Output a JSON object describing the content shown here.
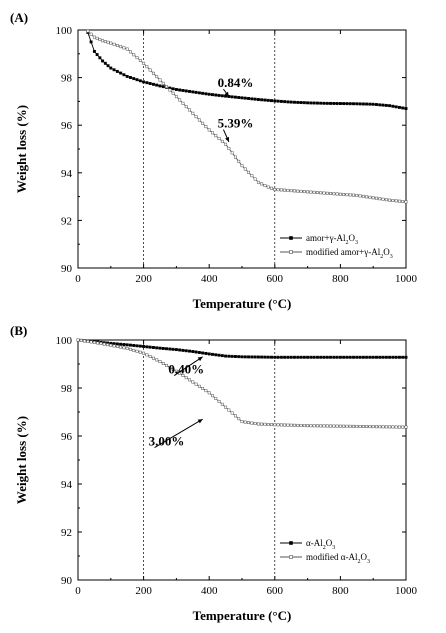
{
  "chart_data": [
    {
      "type": "line",
      "panel_label": "(A)",
      "xlabel": "Temperature (°C)",
      "ylabel": "Weight loss (%)",
      "xlim": [
        0,
        1000
      ],
      "ylim": [
        90,
        100
      ],
      "xticks": [
        0,
        200,
        400,
        600,
        800,
        1000
      ],
      "yticks": [
        90,
        92,
        94,
        96,
        98,
        100
      ],
      "dashed_vlines": [
        200,
        600
      ],
      "legend_position": "bottom-right",
      "series": [
        {
          "name": "amor+γ-Al2O3",
          "legend_base": "amor+γ-Al",
          "marker": "filled-square",
          "color": "#000000",
          "x": [
            30,
            50,
            75,
            100,
            150,
            200,
            250,
            300,
            350,
            400,
            450,
            500,
            550,
            600,
            650,
            700,
            750,
            800,
            850,
            900,
            950,
            1000
          ],
          "y": [
            99.9,
            99.1,
            98.7,
            98.4,
            98.05,
            97.82,
            97.65,
            97.5,
            97.4,
            97.3,
            97.22,
            97.15,
            97.08,
            97.02,
            96.97,
            96.94,
            96.92,
            96.91,
            96.9,
            96.88,
            96.82,
            96.7
          ]
        },
        {
          "name": "modified amor+γ-Al2O3",
          "legend_base": "modified amor+γ-Al",
          "marker": "open-square",
          "color": "#555555",
          "x": [
            30,
            50,
            75,
            100,
            150,
            200,
            250,
            300,
            350,
            400,
            450,
            500,
            550,
            580,
            600,
            650,
            700,
            750,
            800,
            850,
            900,
            950,
            1000
          ],
          "y": [
            99.95,
            99.7,
            99.55,
            99.45,
            99.2,
            98.6,
            97.9,
            97.2,
            96.5,
            95.8,
            95.2,
            94.3,
            93.6,
            93.4,
            93.3,
            93.25,
            93.2,
            93.15,
            93.1,
            93.05,
            92.95,
            92.85,
            92.78
          ]
        }
      ],
      "annotations": [
        {
          "text": "0.84%",
          "x": 480,
          "y": 97.6,
          "arrow_to": [
            460,
            97.2
          ]
        },
        {
          "text": "5.39%",
          "x": 480,
          "y": 95.9,
          "arrow_to": [
            460,
            95.3
          ]
        }
      ]
    },
    {
      "type": "line",
      "panel_label": "(B)",
      "xlabel": "Temperature (°C)",
      "ylabel": "Weight loss (%)",
      "xlim": [
        0,
        1000
      ],
      "ylim": [
        90,
        100
      ],
      "xticks": [
        0,
        200,
        400,
        600,
        800,
        1000
      ],
      "yticks": [
        90,
        92,
        94,
        96,
        98,
        100
      ],
      "dashed_vlines": [
        200,
        600
      ],
      "legend_position": "bottom-right",
      "series": [
        {
          "name": "α-Al2O3",
          "legend_base": "α-Al",
          "marker": "filled-square",
          "color": "#000000",
          "x": [
            0,
            50,
            100,
            150,
            200,
            250,
            300,
            350,
            400,
            450,
            500,
            550,
            600,
            650,
            700,
            750,
            800,
            850,
            900,
            950,
            1000
          ],
          "y": [
            100.0,
            99.93,
            99.86,
            99.8,
            99.73,
            99.66,
            99.6,
            99.52,
            99.42,
            99.33,
            99.3,
            99.29,
            99.28,
            99.28,
            99.28,
            99.28,
            99.28,
            99.28,
            99.28,
            99.28,
            99.28
          ]
        },
        {
          "name": "modified α-Al2O3",
          "legend_base": "modified α-Al",
          "marker": "open-square",
          "color": "#555555",
          "x": [
            0,
            50,
            100,
            150,
            200,
            250,
            300,
            350,
            400,
            450,
            500,
            550,
            600,
            650,
            700,
            750,
            800,
            850,
            900,
            950,
            1000
          ],
          "y": [
            100.0,
            99.9,
            99.78,
            99.65,
            99.45,
            99.1,
            98.7,
            98.25,
            97.8,
            97.2,
            96.6,
            96.5,
            96.47,
            96.45,
            96.43,
            96.42,
            96.41,
            96.4,
            96.39,
            96.38,
            96.37
          ]
        }
      ],
      "annotations": [
        {
          "text": "0.40%",
          "x": 330,
          "y": 98.6,
          "arrow_to": [
            380,
            99.3
          ]
        },
        {
          "text": "3.00%",
          "x": 270,
          "y": 95.6,
          "arrow_to": [
            380,
            96.7
          ]
        }
      ]
    }
  ]
}
